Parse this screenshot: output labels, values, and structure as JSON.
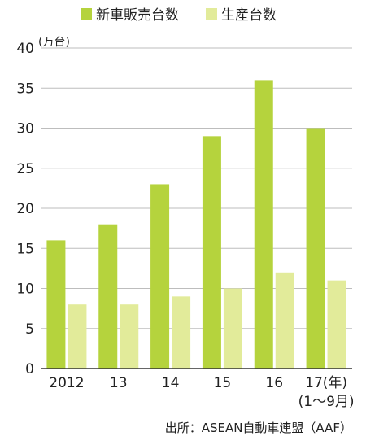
{
  "chart_data": {
    "type": "bar",
    "categories": [
      "2012",
      "13",
      "14",
      "15",
      "16",
      "17(年)"
    ],
    "category_sublabels": [
      "",
      "",
      "",
      "",
      "",
      "(1～9月)"
    ],
    "series": [
      {
        "name": "新車販売台数",
        "values": [
          16,
          18,
          23,
          29,
          36,
          30
        ],
        "color": "#b5d33d"
      },
      {
        "name": "生産台数",
        "values": [
          8,
          8,
          9,
          10,
          12,
          11
        ],
        "color": "#e2eb9a"
      }
    ],
    "ylabel": "(万台)",
    "ylim": [
      0,
      40
    ],
    "yticks": [
      "0",
      "5",
      "10",
      "15",
      "20",
      "25",
      "30",
      "35",
      "40"
    ],
    "grid": true,
    "legend_position": "top",
    "source": "出所：ASEAN自動車連盟（AAF）"
  }
}
